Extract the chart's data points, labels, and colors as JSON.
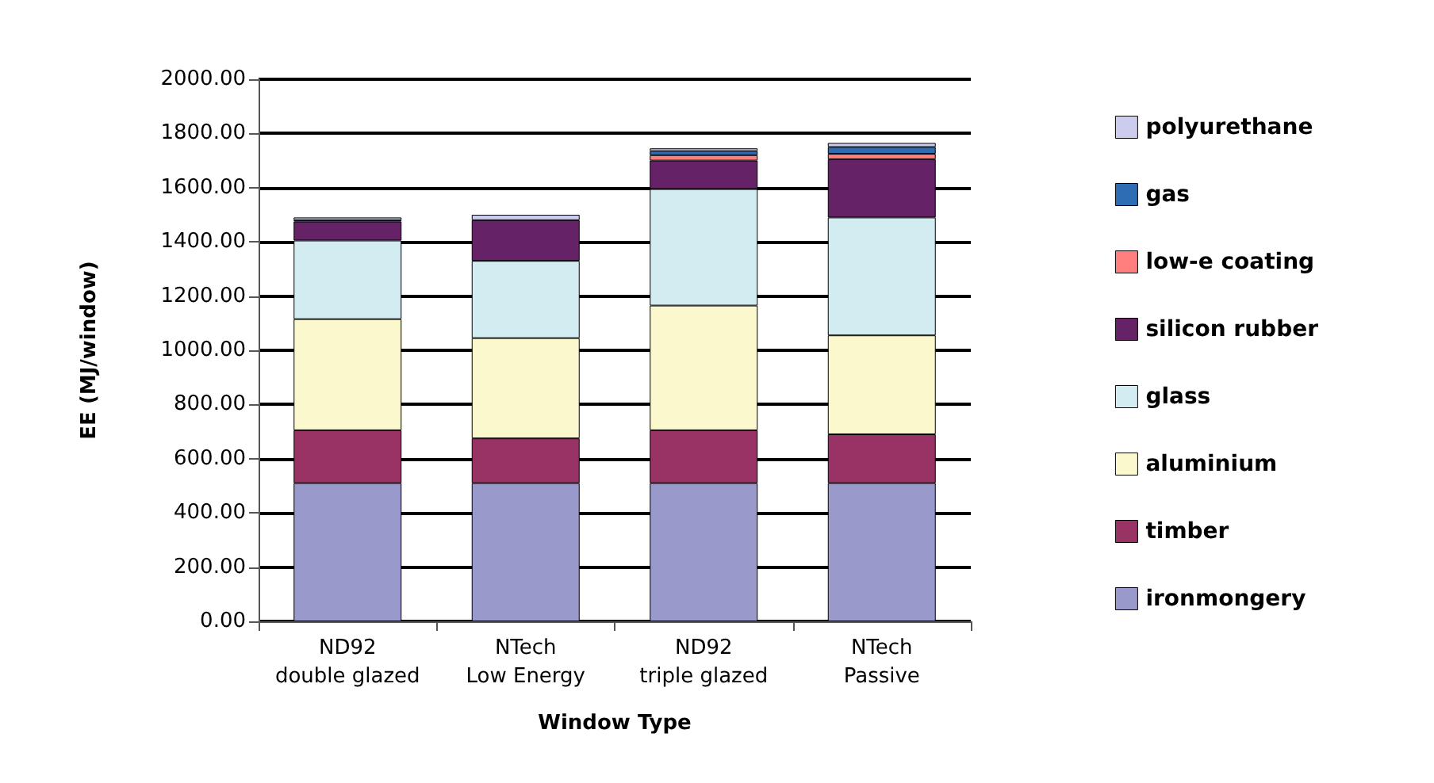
{
  "chart_data": {
    "type": "bar",
    "stacked": true,
    "xlabel": "Window Type",
    "ylabel": "EE (MJ/window)",
    "categories": [
      "ND92\ndouble glazed",
      "NTech\nLow Energy",
      "ND92\ntriple glazed",
      "NTech\nPassive"
    ],
    "series": [
      {
        "name": "ironmongery",
        "color": "#9999cc",
        "values": [
          510,
          510,
          510,
          510
        ]
      },
      {
        "name": "timber",
        "color": "#993366",
        "values": [
          195,
          165,
          195,
          180
        ]
      },
      {
        "name": "aluminium",
        "color": "#fcf8ce",
        "values": [
          410,
          370,
          460,
          365
        ]
      },
      {
        "name": "glass",
        "color": "#d3ecf2",
        "values": [
          290,
          285,
          430,
          435
        ]
      },
      {
        "name": "silicon rubber",
        "color": "#662266",
        "values": [
          70,
          150,
          105,
          215
        ]
      },
      {
        "name": "low-e coating",
        "color": "#ff7f7f",
        "values": [
          null,
          null,
          20,
          20
        ]
      },
      {
        "name": "gas",
        "color": "#2e6db4",
        "values": [
          5,
          null,
          15,
          25
        ]
      },
      {
        "name": "polyurethane",
        "color": "#ccccee",
        "values": [
          10,
          20,
          10,
          15
        ]
      }
    ],
    "ylim": [
      0,
      2000
    ],
    "yticks": [
      {
        "value": 0,
        "label": "0.00"
      },
      {
        "value": 200,
        "label": "200.00"
      },
      {
        "value": 400,
        "label": "400.00"
      },
      {
        "value": 600,
        "label": "600.00"
      },
      {
        "value": 800,
        "label": "800.00"
      },
      {
        "value": 1000,
        "label": "1000.00"
      },
      {
        "value": 1200,
        "label": "1200.00"
      },
      {
        "value": 1400,
        "label": "1400.00"
      },
      {
        "value": 1600,
        "label": "1600.00"
      },
      {
        "value": 1800,
        "label": "1800.00"
      },
      {
        "value": 2000,
        "label": "2000.00"
      }
    ],
    "grid": "y",
    "legend": "right"
  }
}
